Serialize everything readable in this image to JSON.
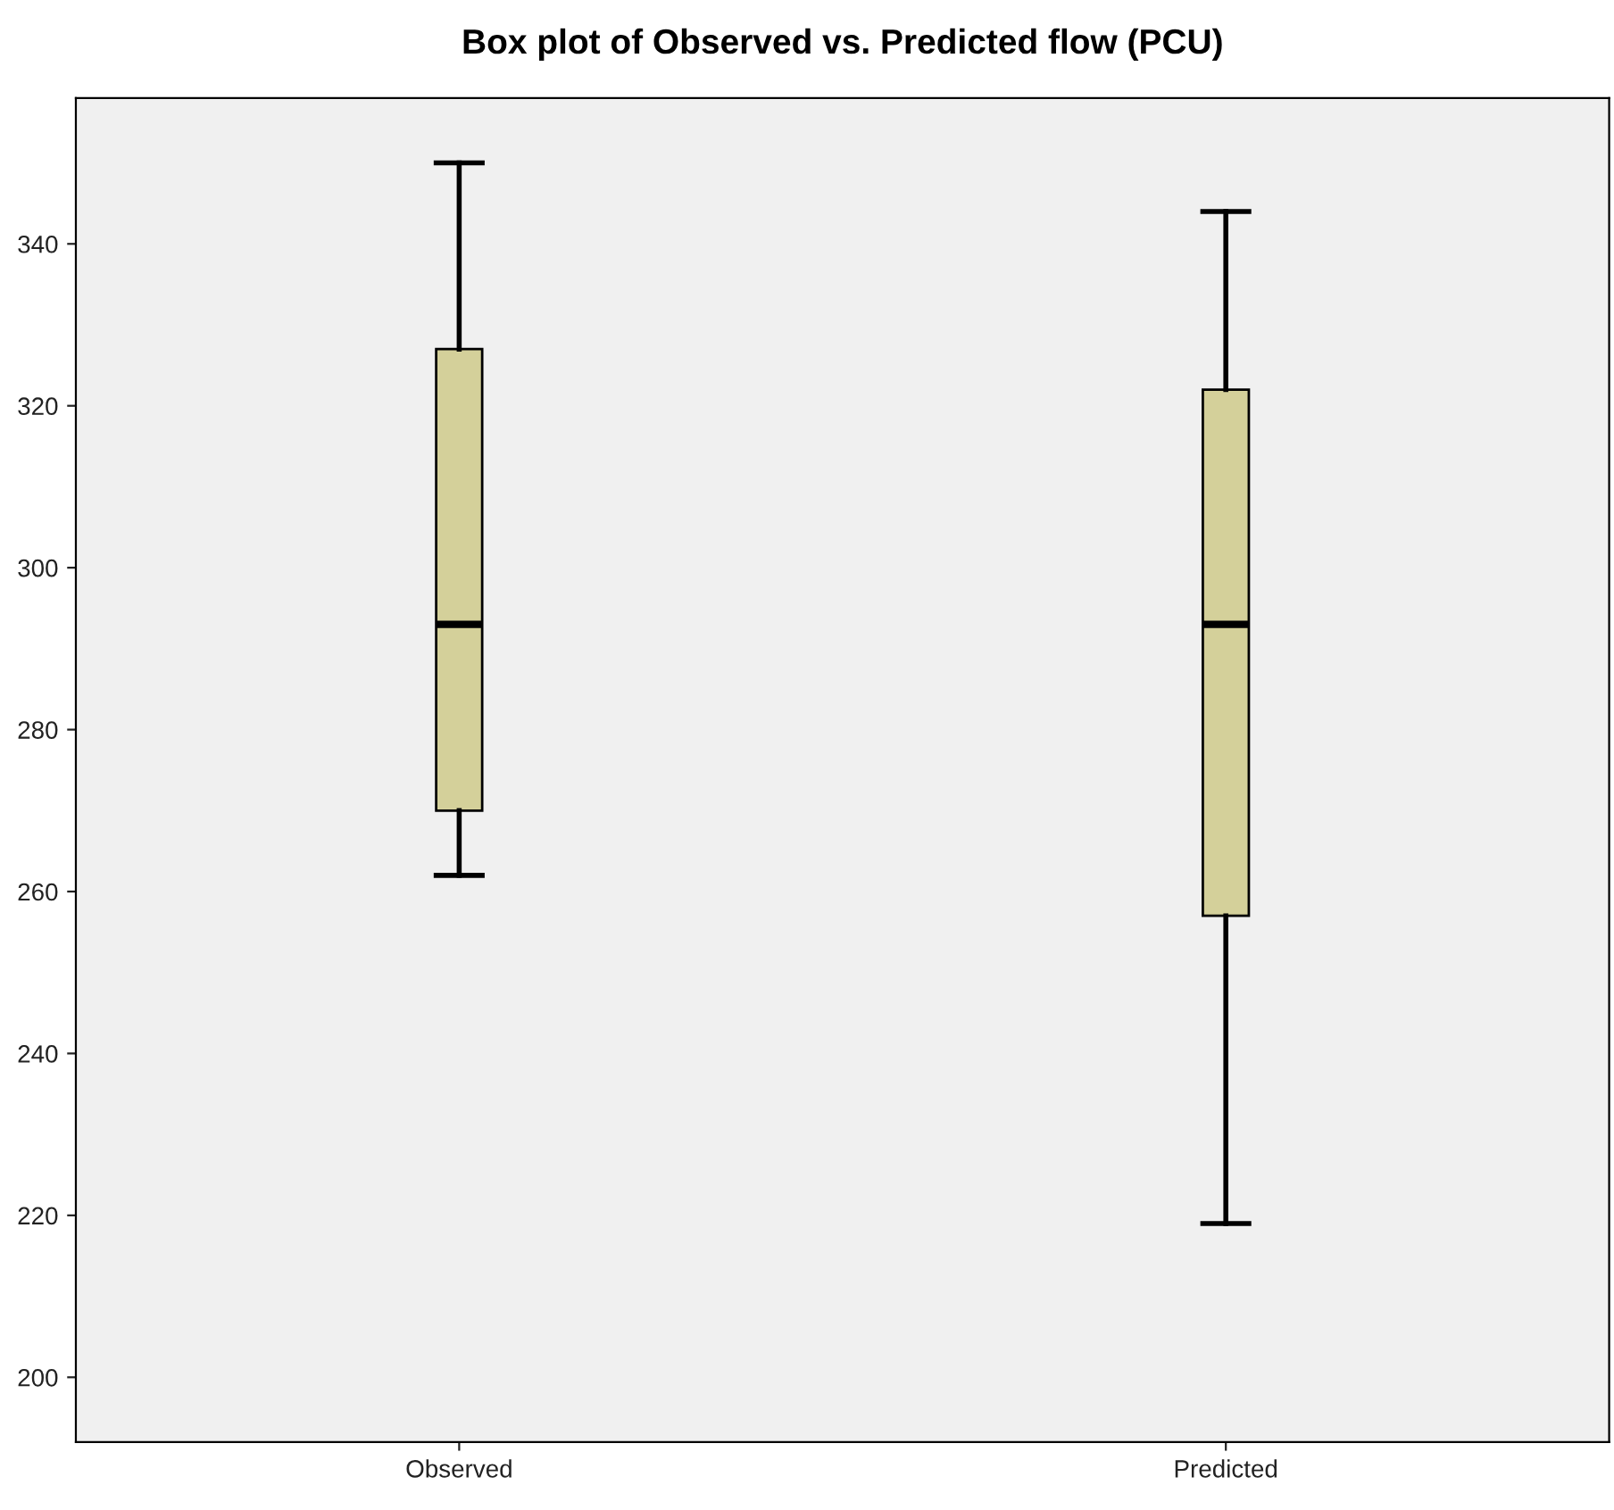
{
  "chart_data": {
    "type": "box",
    "title": "Box plot of Observed vs. Predicted flow (PCU)",
    "categories": [
      "Observed",
      "Predicted"
    ],
    "boxes": [
      {
        "low": 262,
        "q1": 270,
        "median": 293,
        "q3": 327,
        "high": 350
      },
      {
        "low": 219,
        "q1": 257,
        "median": 293,
        "q3": 322,
        "high": 344
      }
    ],
    "color": "#d4d09a",
    "ylim": [
      192,
      358
    ],
    "yticks": [
      200,
      220,
      240,
      260,
      280,
      300,
      320,
      340
    ],
    "grid": false
  }
}
